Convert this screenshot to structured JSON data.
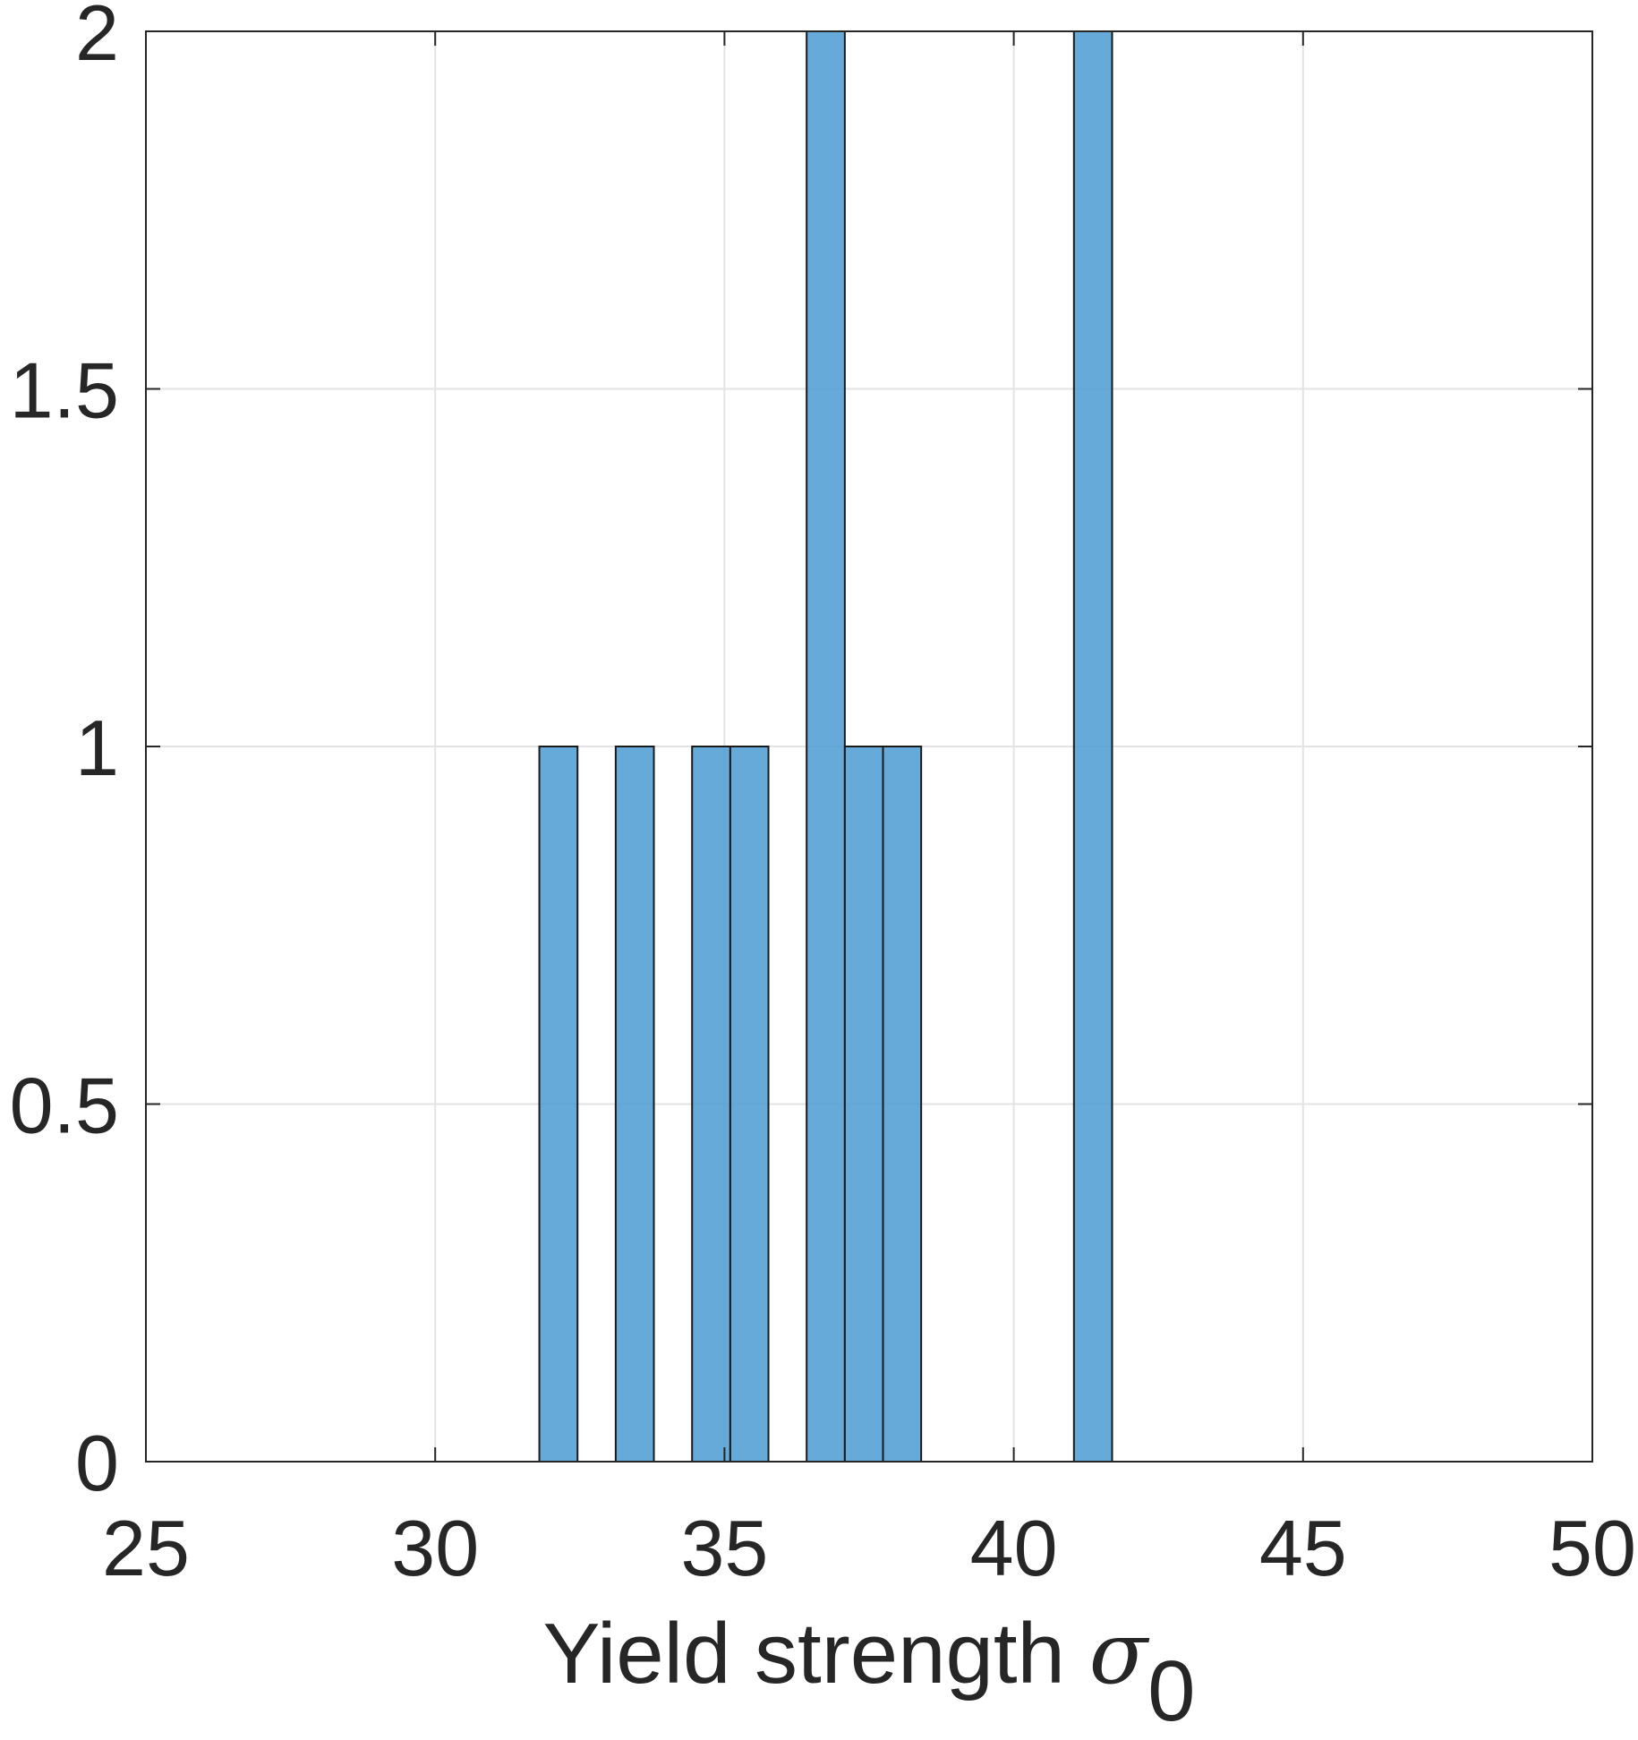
{
  "chart_data": {
    "type": "bar",
    "title": "",
    "xlabel": "Yield strength ",
    "xlabel_symbol": "σ",
    "xlabel_subscript": "0",
    "ylabel": "",
    "xlim": [
      25,
      50
    ],
    "ylim": [
      0,
      2
    ],
    "xticks": [
      25,
      30,
      35,
      40,
      45,
      50
    ],
    "xtick_labels": [
      "25",
      "30",
      "35",
      "40",
      "45",
      "50"
    ],
    "yticks": [
      0,
      0.5,
      1,
      1.5,
      2
    ],
    "ytick_labels": [
      "0",
      "0.5",
      "1",
      "1.5",
      "2"
    ],
    "grid": true,
    "bin_width": 0.66,
    "bins": [
      {
        "left": 31.8,
        "right": 32.46,
        "count": 1
      },
      {
        "left": 33.12,
        "right": 33.78,
        "count": 1
      },
      {
        "left": 34.44,
        "right": 35.1,
        "count": 1
      },
      {
        "left": 35.1,
        "right": 35.76,
        "count": 1
      },
      {
        "left": 36.42,
        "right": 37.08,
        "count": 2
      },
      {
        "left": 37.08,
        "right": 37.74,
        "count": 1
      },
      {
        "left": 37.74,
        "right": 38.4,
        "count": 1
      },
      {
        "left": 41.04,
        "right": 41.7,
        "count": 2
      }
    ],
    "colors": {
      "bar_fill": "#4a9bd1",
      "bar_edge": "#1a1a1a",
      "axis": "#262626",
      "grid": "#e3e3e3"
    }
  }
}
